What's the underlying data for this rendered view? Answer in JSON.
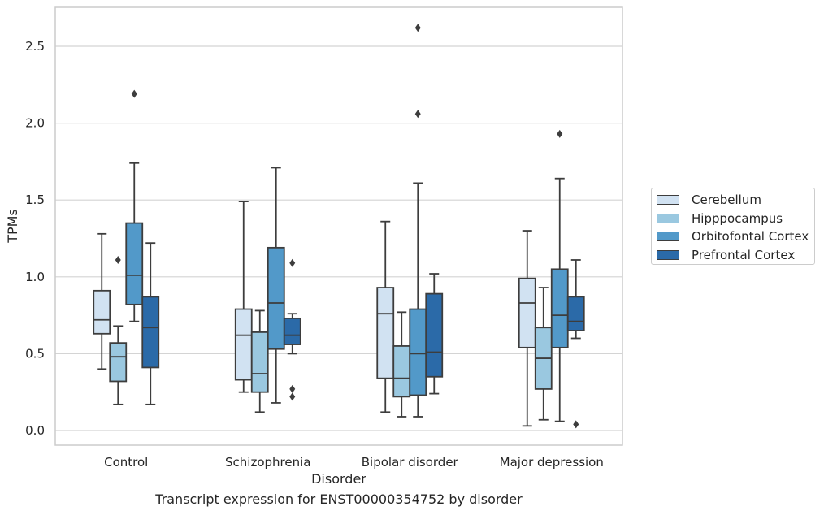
{
  "chart_data": {
    "type": "box",
    "caption": "Transcript expression for ENST00000354752 by disorder",
    "xlabel": "Disorder",
    "ylabel": "TPMs",
    "ylim": [
      -0.09,
      2.76
    ],
    "yticks": [
      "0.0",
      "0.5",
      "1.0",
      "1.5",
      "2.0",
      "2.5"
    ],
    "ytick_values": [
      0,
      0.5,
      1.0,
      1.5,
      2.0,
      2.5
    ],
    "grid": "horizontal",
    "legend_position": "right",
    "categories": [
      "Control",
      "Schizophrenia",
      "Bipolar disorder",
      "Major depression"
    ],
    "series": [
      {
        "name": "Cerebellum",
        "color": "#d1e2f2",
        "boxes": [
          {
            "whisker_low": 0.4,
            "q1": 0.63,
            "median": 0.72,
            "q3": 0.91,
            "whisker_high": 1.28,
            "outliers": []
          },
          {
            "whisker_low": 0.25,
            "q1": 0.33,
            "median": 0.62,
            "q3": 0.79,
            "whisker_high": 1.49,
            "outliers": []
          },
          {
            "whisker_low": 0.12,
            "q1": 0.34,
            "median": 0.76,
            "q3": 0.93,
            "whisker_high": 1.36,
            "outliers": []
          },
          {
            "whisker_low": 0.03,
            "q1": 0.54,
            "median": 0.83,
            "q3": 0.99,
            "whisker_high": 1.3,
            "outliers": []
          }
        ]
      },
      {
        "name": "Hipppocampus",
        "color": "#9ac8e0",
        "boxes": [
          {
            "whisker_low": 0.17,
            "q1": 0.32,
            "median": 0.48,
            "q3": 0.57,
            "whisker_high": 0.68,
            "outliers": [
              1.11
            ]
          },
          {
            "whisker_low": 0.12,
            "q1": 0.25,
            "median": 0.37,
            "q3": 0.64,
            "whisker_high": 0.78,
            "outliers": []
          },
          {
            "whisker_low": 0.09,
            "q1": 0.22,
            "median": 0.34,
            "q3": 0.55,
            "whisker_high": 0.77,
            "outliers": []
          },
          {
            "whisker_low": 0.07,
            "q1": 0.27,
            "median": 0.47,
            "q3": 0.67,
            "whisker_high": 0.93,
            "outliers": []
          }
        ]
      },
      {
        "name": "Orbitofontal Cortex",
        "color": "#5299c9",
        "boxes": [
          {
            "whisker_low": 0.71,
            "q1": 0.82,
            "median": 1.01,
            "q3": 1.35,
            "whisker_high": 1.74,
            "outliers": [
              2.19
            ]
          },
          {
            "whisker_low": 0.18,
            "q1": 0.53,
            "median": 0.83,
            "q3": 1.19,
            "whisker_high": 1.71,
            "outliers": []
          },
          {
            "whisker_low": 0.09,
            "q1": 0.23,
            "median": 0.5,
            "q3": 0.79,
            "whisker_high": 1.61,
            "outliers": [
              2.06,
              2.62
            ]
          },
          {
            "whisker_low": 0.06,
            "q1": 0.54,
            "median": 0.75,
            "q3": 1.05,
            "whisker_high": 1.64,
            "outliers": [
              1.93
            ]
          }
        ]
      },
      {
        "name": "Prefrontal Cortex",
        "color": "#2b6aa8",
        "boxes": [
          {
            "whisker_low": 0.17,
            "q1": 0.41,
            "median": 0.67,
            "q3": 0.87,
            "whisker_high": 1.22,
            "outliers": []
          },
          {
            "whisker_low": 0.5,
            "q1": 0.56,
            "median": 0.62,
            "q3": 0.73,
            "whisker_high": 0.76,
            "outliers": [
              0.22,
              0.27,
              1.09
            ]
          },
          {
            "whisker_low": 0.24,
            "q1": 0.35,
            "median": 0.51,
            "q3": 0.89,
            "whisker_high": 1.02,
            "outliers": []
          },
          {
            "whisker_low": 0.6,
            "q1": 0.65,
            "median": 0.71,
            "q3": 0.87,
            "whisker_high": 1.11,
            "outliers": [
              0.04
            ]
          }
        ]
      }
    ]
  }
}
